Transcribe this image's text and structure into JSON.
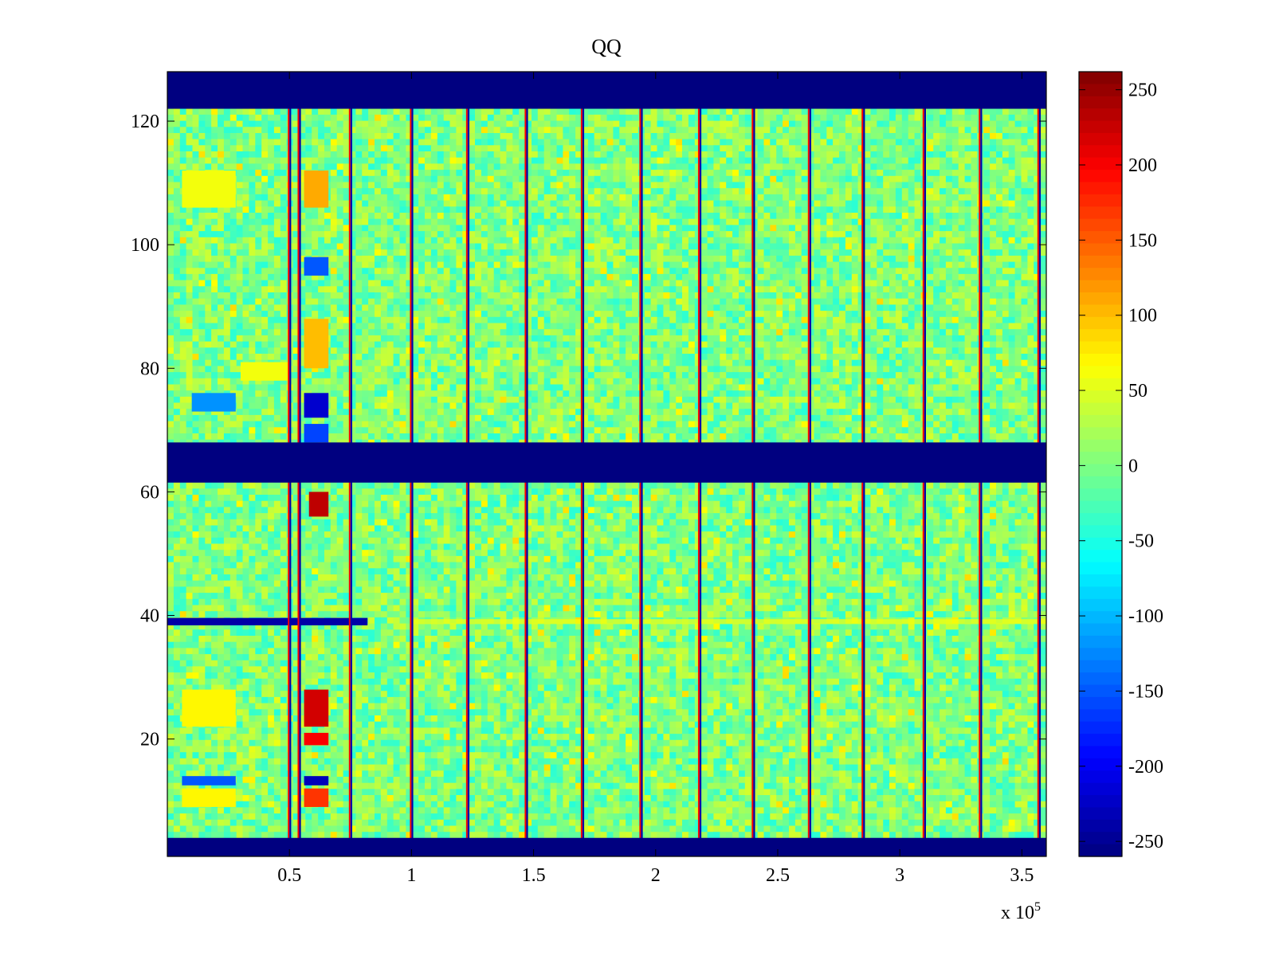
{
  "chart_data": {
    "type": "heatmap",
    "title": "QQ",
    "xlabel": "",
    "ylabel": "",
    "x_multiplier_label": "x 10",
    "x_multiplier_exponent": "5",
    "xlim": [
      0,
      360000
    ],
    "ylim": [
      1,
      128
    ],
    "x_ticks": [
      {
        "value": 0.5,
        "label": "0.5"
      },
      {
        "value": 1.0,
        "label": "1"
      },
      {
        "value": 1.5,
        "label": "1.5"
      },
      {
        "value": 2.0,
        "label": "2"
      },
      {
        "value": 2.5,
        "label": "2.5"
      },
      {
        "value": 3.0,
        "label": "3"
      },
      {
        "value": 3.5,
        "label": "3.5"
      }
    ],
    "y_ticks": [
      {
        "value": 20,
        "label": "20"
      },
      {
        "value": 40,
        "label": "40"
      },
      {
        "value": 60,
        "label": "60"
      },
      {
        "value": 80,
        "label": "80"
      },
      {
        "value": 100,
        "label": "100"
      },
      {
        "value": 120,
        "label": "120"
      }
    ],
    "colorbar": {
      "range": [
        -260,
        262
      ],
      "colormap": "jet",
      "ticks": [
        {
          "value": 250,
          "label": "250"
        },
        {
          "value": 200,
          "label": "200"
        },
        {
          "value": 150,
          "label": "150"
        },
        {
          "value": 100,
          "label": "100"
        },
        {
          "value": 50,
          "label": "50"
        },
        {
          "value": 0,
          "label": "0"
        },
        {
          "value": -50,
          "label": "-50"
        },
        {
          "value": -100,
          "label": "-100"
        },
        {
          "value": -150,
          "label": "-150"
        },
        {
          "value": -200,
          "label": "-200"
        },
        {
          "value": -250,
          "label": "-250"
        }
      ]
    },
    "masked_rows": [
      {
        "from": 1,
        "to": 4,
        "value": -260
      },
      {
        "from": 61.5,
        "to": 68,
        "value": -260
      },
      {
        "from": 122,
        "to": 128,
        "value": -260
      }
    ],
    "background_value": 0,
    "vertical_stripes_x": [
      0.5,
      0.54,
      0.75,
      1.0,
      1.23,
      1.47,
      1.7,
      1.94,
      2.18,
      2.4,
      2.63,
      2.85,
      3.1,
      3.33,
      3.57
    ],
    "anomaly_row": {
      "y": 39,
      "from_x": 0.0,
      "to_x": 0.82,
      "value": -240
    },
    "anomaly_row_tail": {
      "y": 39,
      "from_x": 1.0,
      "to_x": 3.6,
      "value": 60
    },
    "patch_regions": [
      {
        "x": [
          0.56,
          0.66
        ],
        "y": [
          106,
          112
        ],
        "value": 110
      },
      {
        "x": [
          0.56,
          0.66
        ],
        "y": [
          95,
          98
        ],
        "value": -150
      },
      {
        "x": [
          0.56,
          0.66
        ],
        "y": [
          80,
          88
        ],
        "value": 100
      },
      {
        "x": [
          0.56,
          0.66
        ],
        "y": [
          72,
          76
        ],
        "value": -220
      },
      {
        "x": [
          0.56,
          0.66
        ],
        "y": [
          68,
          71
        ],
        "value": -160
      },
      {
        "x": [
          0.58,
          0.66
        ],
        "y": [
          56,
          60
        ],
        "value": 230
      },
      {
        "x": [
          0.56,
          0.66
        ],
        "y": [
          22,
          28
        ],
        "value": 220
      },
      {
        "x": [
          0.56,
          0.66
        ],
        "y": [
          19,
          21
        ],
        "value": 200
      },
      {
        "x": [
          0.56,
          0.66
        ],
        "y": [
          12.5,
          14
        ],
        "value": -230
      },
      {
        "x": [
          0.56,
          0.66
        ],
        "y": [
          9,
          12
        ],
        "value": 170
      },
      {
        "x": [
          0.06,
          0.28
        ],
        "y": [
          106,
          112
        ],
        "value": 60
      },
      {
        "x": [
          0.1,
          0.28
        ],
        "y": [
          73,
          76
        ],
        "value": -120
      },
      {
        "x": [
          0.3,
          0.5
        ],
        "y": [
          78,
          81
        ],
        "value": 60
      },
      {
        "x": [
          0.06,
          0.28
        ],
        "y": [
          22,
          28
        ],
        "value": 70
      },
      {
        "x": [
          0.06,
          0.28
        ],
        "y": [
          9,
          12
        ],
        "value": 70
      },
      {
        "x": [
          0.06,
          0.28
        ],
        "y": [
          12.5,
          14
        ],
        "value": -150
      }
    ]
  }
}
